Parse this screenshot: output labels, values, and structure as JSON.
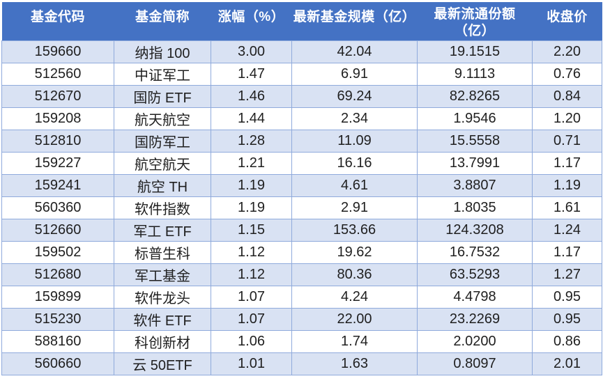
{
  "colors": {
    "header_bg": "#4472C4",
    "header_text": "#FFFFFF",
    "stripe_bg": "#D9E2F3",
    "row_bg": "#FFFFFF",
    "border": "#8FAADC",
    "body_text": "#1F1F1F"
  },
  "table": {
    "columns": [
      {
        "key": "code",
        "label": "基金代码"
      },
      {
        "key": "name",
        "label": "基金简称"
      },
      {
        "key": "change",
        "label": "涨幅（%）"
      },
      {
        "key": "scale",
        "label": "最新基金规模（亿）"
      },
      {
        "key": "shares",
        "label": "最新流通份额（亿）"
      },
      {
        "key": "close",
        "label": "收盘价"
      }
    ],
    "rows": [
      [
        "159660",
        "纳指 100",
        "3.00",
        "42.04",
        "19.1515",
        "2.20"
      ],
      [
        "512560",
        "中证军工",
        "1.47",
        "6.91",
        "9.1113",
        "0.76"
      ],
      [
        "512670",
        "国防 ETF",
        "1.46",
        "69.24",
        "82.8265",
        "0.84"
      ],
      [
        "159208",
        "航天航空",
        "1.44",
        "2.34",
        "1.9546",
        "1.20"
      ],
      [
        "512810",
        "国防军工",
        "1.28",
        "11.09",
        "15.5558",
        "0.71"
      ],
      [
        "159227",
        "航空航天",
        "1.21",
        "16.16",
        "13.7991",
        "1.17"
      ],
      [
        "159241",
        "航空 TH",
        "1.19",
        "4.61",
        "3.8807",
        "1.19"
      ],
      [
        "560360",
        "软件指数",
        "1.19",
        "2.91",
        "1.8035",
        "1.61"
      ],
      [
        "512660",
        "军工 ETF",
        "1.15",
        "153.66",
        "124.3208",
        "1.24"
      ],
      [
        "159502",
        "标普生科",
        "1.12",
        "19.62",
        "16.7532",
        "1.17"
      ],
      [
        "512680",
        "军工基金",
        "1.12",
        "80.36",
        "63.5293",
        "1.27"
      ],
      [
        "159899",
        "软件龙头",
        "1.07",
        "4.24",
        "4.4798",
        "0.95"
      ],
      [
        "515230",
        "软件 ETF",
        "1.07",
        "22.00",
        "23.2269",
        "0.95"
      ],
      [
        "588160",
        "科创新材",
        "1.06",
        "1.74",
        "2.0200",
        "0.86"
      ],
      [
        "560660",
        "云 50ETF",
        "1.01",
        "1.63",
        "0.8097",
        "2.01"
      ]
    ]
  }
}
